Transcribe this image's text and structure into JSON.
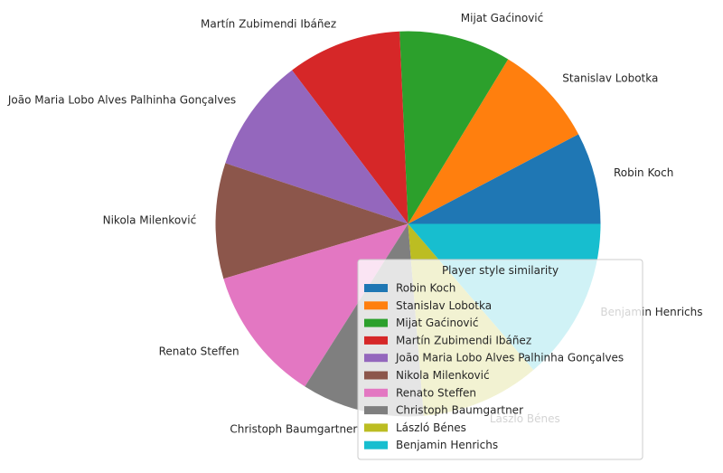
{
  "chart_data": {
    "type": "pie",
    "labels": [
      "Robin Koch",
      "Stanislav Lobotka",
      "Mijat Gaćinović",
      "Martín Zubimendi Ibáñez",
      "João Maria Lobo Alves Palhinha Gonçalves",
      "Nikola Milenković",
      "Renato Steffen",
      "Christoph Baumgartner",
      "László Bénes",
      "Benjamin Henrichs"
    ],
    "values": [
      0.077,
      0.086,
      0.094,
      0.096,
      0.096,
      0.097,
      0.114,
      0.103,
      0.1,
      0.137
    ],
    "colors": [
      "#1f77b4",
      "#ff7f0e",
      "#2ca02c",
      "#d62728",
      "#9467bd",
      "#8c564b",
      "#e377c2",
      "#7f7f7f",
      "#bcbd22",
      "#17becf"
    ],
    "start_angle_deg": 0,
    "direction": "counterclockwise",
    "legend": {
      "title": "Player style similarity",
      "placement": "lower-right"
    }
  }
}
